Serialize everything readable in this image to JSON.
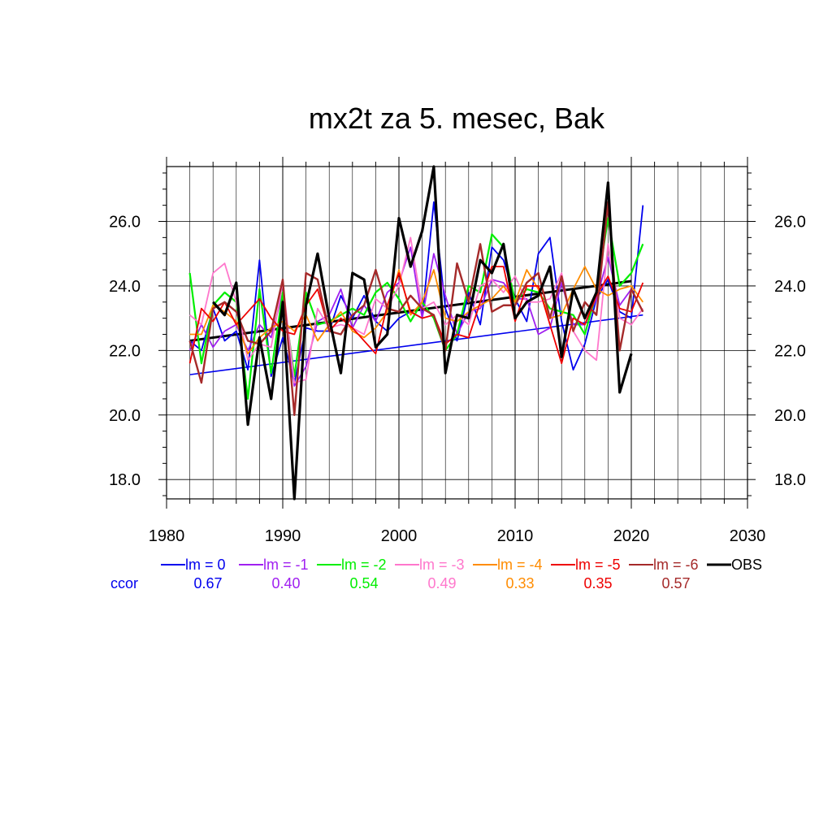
{
  "chart_data": {
    "type": "line",
    "title": "mx2t za 5. mesec, Bak",
    "xlabel": "",
    "ylabel": "",
    "xlim": [
      1980,
      2030
    ],
    "ylim": [
      17.4,
      27.7
    ],
    "x_ticks": [
      1980,
      1990,
      2000,
      2010,
      2020,
      2030
    ],
    "x_tick_labels": [
      "1980",
      "1990",
      "2000",
      "2010",
      "2020",
      "2030"
    ],
    "y_ticks": [
      18,
      20,
      22,
      24,
      26
    ],
    "y_tick_labels": [
      "18.0",
      "20.0",
      "22.0",
      "24.0",
      "26.0"
    ],
    "grid": true,
    "legend_position": "bottom",
    "ccor_label": "ccor",
    "years": [
      1982,
      1983,
      1984,
      1985,
      1986,
      1987,
      1988,
      1989,
      1990,
      1991,
      1992,
      1993,
      1994,
      1995,
      1996,
      1997,
      1998,
      1999,
      2000,
      2001,
      2002,
      2003,
      2004,
      2005,
      2006,
      2007,
      2008,
      2009,
      2010,
      2011,
      2012,
      2013,
      2014,
      2015,
      2016,
      2017,
      2018,
      2019,
      2020,
      2021
    ],
    "series": [
      {
        "name": "lm = 0",
        "color": "#0000ee",
        "ccor": "0.67",
        "width": 1.8,
        "values": [
          22.3,
          22.0,
          23.3,
          22.3,
          22.6,
          21.4,
          24.8,
          21.2,
          22.4,
          21.0,
          22.7,
          22.6,
          22.6,
          23.7,
          23.0,
          23.7,
          22.9,
          22.6,
          23.0,
          23.2,
          23.0,
          26.6,
          23.3,
          22.3,
          23.8,
          22.8,
          25.2,
          24.8,
          23.6,
          22.9,
          25.0,
          25.5,
          22.9,
          21.4,
          22.2,
          23.6,
          24.2,
          23.2,
          23.0,
          26.5
        ],
        "trend": [
          21.25,
          23.1
        ]
      },
      {
        "name": "lm = -1",
        "color": "#a020f0",
        "ccor": "0.40",
        "width": 1.8,
        "values": [
          22.0,
          22.8,
          22.1,
          22.6,
          22.8,
          22.0,
          22.8,
          22.4,
          23.8,
          20.9,
          21.5,
          22.9,
          23.1,
          23.9,
          22.7,
          23.4,
          22.9,
          23.8,
          24.1,
          25.2,
          23.0,
          25.0,
          23.7,
          22.5,
          23.2,
          23.3,
          24.2,
          24.1,
          23.6,
          23.6,
          22.5,
          22.7,
          24.1,
          22.8,
          22.8,
          23.6,
          24.9,
          23.4,
          23.9,
          23.2
        ],
        "trend": null
      },
      {
        "name": "lm = -2",
        "color": "#00ee00",
        "ccor": "0.54",
        "width": 2.2,
        "values": [
          24.4,
          21.6,
          23.4,
          23.8,
          23.5,
          20.5,
          23.9,
          21.3,
          23.8,
          21.2,
          23.8,
          22.8,
          22.9,
          23.1,
          23.3,
          23.1,
          23.8,
          24.1,
          23.6,
          22.9,
          23.5,
          23.0,
          22.0,
          22.5,
          24.0,
          23.8,
          25.6,
          25.2,
          23.5,
          23.9,
          23.8,
          23.3,
          23.2,
          23.1,
          22.5,
          23.8,
          26.1,
          24.0,
          24.4,
          25.3
        ],
        "trend": null
      },
      {
        "name": "lm = -3",
        "color": "#ff77cc",
        "ccor": "0.49",
        "width": 1.8,
        "values": [
          23.1,
          22.8,
          24.4,
          24.7,
          23.5,
          21.7,
          22.2,
          22.1,
          24.1,
          21.0,
          21.1,
          23.3,
          22.7,
          22.8,
          22.7,
          22.5,
          23.6,
          23.3,
          24.0,
          25.5,
          23.3,
          23.5,
          22.8,
          23.1,
          22.8,
          24.0,
          24.2,
          23.8,
          24.3,
          23.5,
          23.5,
          23.6,
          24.4,
          22.6,
          22.0,
          21.7,
          25.3,
          23.0,
          22.8,
          23.3
        ],
        "trend": null
      },
      {
        "name": "lm = -4",
        "color": "#ff8c00",
        "ccor": "0.33",
        "width": 1.8,
        "values": [
          22.5,
          22.5,
          23.4,
          23.2,
          22.9,
          21.9,
          22.4,
          22.7,
          22.9,
          22.6,
          23.1,
          22.3,
          22.8,
          23.2,
          22.6,
          22.4,
          22.7,
          23.2,
          24.5,
          23.1,
          23.5,
          24.5,
          23.0,
          22.9,
          23.2,
          23.4,
          23.6,
          24.0,
          23.5,
          24.5,
          23.9,
          23.0,
          23.1,
          23.9,
          24.6,
          23.9,
          23.7,
          23.9,
          24.0,
          23.5
        ],
        "trend": null
      },
      {
        "name": "lm = -5",
        "color": "#ee0000",
        "ccor": "0.35",
        "width": 1.8,
        "values": [
          21.6,
          23.3,
          22.9,
          23.5,
          22.8,
          23.2,
          23.6,
          23.0,
          22.6,
          22.5,
          23.4,
          23.9,
          22.6,
          23.0,
          22.7,
          22.3,
          21.9,
          23.4,
          24.4,
          23.2,
          23.0,
          23.1,
          22.2,
          22.5,
          22.4,
          23.5,
          24.6,
          24.6,
          22.9,
          24.0,
          24.0,
          22.8,
          21.6,
          23.0,
          22.8,
          23.7,
          24.3,
          23.3,
          23.2,
          24.1
        ],
        "trend": null
      },
      {
        "name": "lm = -6",
        "color": "#a52a2a",
        "ccor": "0.57",
        "width": 2.4,
        "values": [
          22.3,
          21.0,
          23.3,
          23.5,
          23.2,
          22.3,
          22.2,
          22.6,
          24.2,
          20.0,
          24.4,
          24.2,
          22.6,
          22.5,
          23.1,
          23.4,
          24.5,
          23.3,
          23.2,
          23.7,
          23.3,
          23.1,
          22.0,
          24.7,
          23.5,
          25.3,
          23.2,
          23.4,
          23.4,
          24.1,
          24.4,
          23.0,
          24.3,
          22.6,
          23.5,
          23.1,
          26.6,
          22.0,
          23.9,
          23.2
        ],
        "trend": null
      },
      {
        "name": "OBS",
        "color": "#000000",
        "ccor": "",
        "width": 3.2,
        "values": [
          null,
          null,
          23.5,
          23.1,
          24.1,
          19.7,
          22.4,
          20.5,
          23.5,
          17.4,
          23.4,
          25.0,
          23.0,
          21.3,
          24.4,
          24.2,
          22.1,
          22.5,
          26.1,
          24.6,
          25.7,
          27.7,
          21.3,
          23.1,
          23.0,
          24.8,
          24.4,
          25.3,
          23.0,
          23.5,
          23.7,
          24.6,
          21.8,
          23.9,
          23.0,
          23.8,
          27.2,
          20.7,
          21.9,
          null
        ],
        "trend": [
          22.3,
          24.15
        ]
      }
    ]
  }
}
